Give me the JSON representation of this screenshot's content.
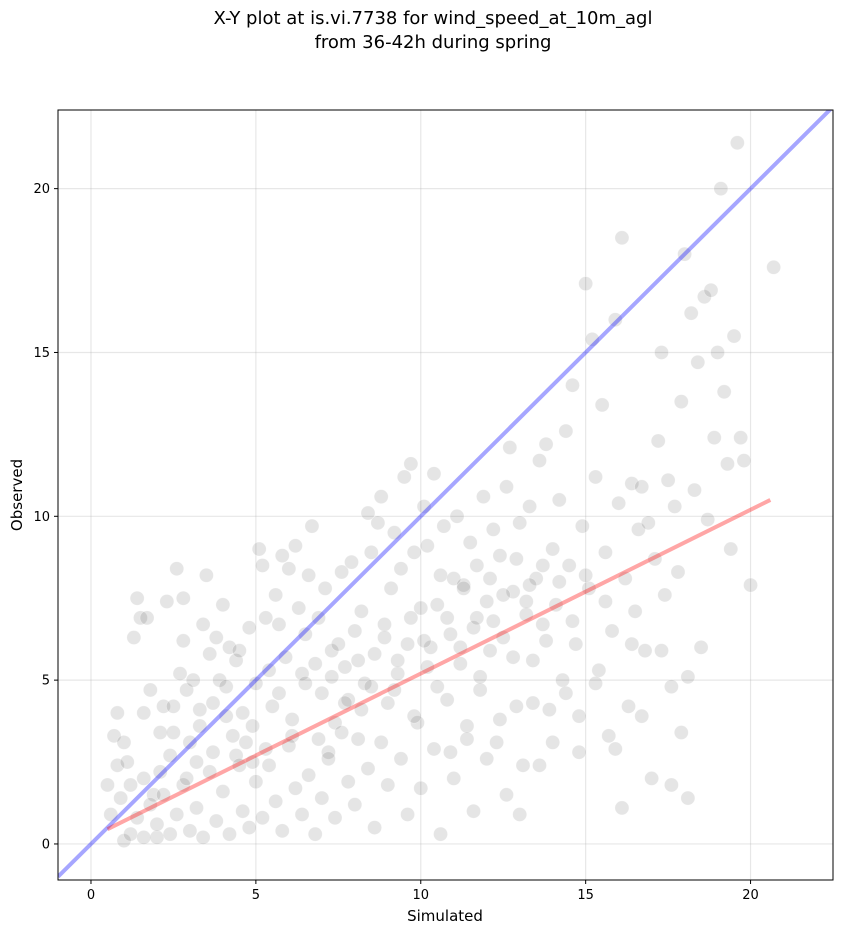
{
  "title_line1": "X-Y plot at is.vi.7738 for wind_speed_at_10m_agl",
  "title_line2": "from 36-42h during spring",
  "chart_data": {
    "type": "scatter",
    "title": "X-Y plot at is.vi.7738 for wind_speed_at_10m_agl\nfrom 36-42h during spring",
    "xlabel": "Simulated",
    "ylabel": "Observed",
    "xlim": [
      -1.0,
      22.5
    ],
    "ylim": [
      -1.1,
      22.4
    ],
    "x_ticks": [
      0,
      5,
      10,
      15,
      20
    ],
    "y_ticks": [
      0,
      5,
      10,
      15,
      20
    ],
    "x_tick_labels": [
      "0",
      "5",
      "10",
      "15",
      "20"
    ],
    "y_tick_labels": [
      "0",
      "5",
      "10",
      "15",
      "20"
    ],
    "grid": true,
    "point_color": "#000000",
    "point_opacity": 0.1,
    "identity_line": {
      "x": [
        -1.0,
        22.5
      ],
      "y": [
        -1.0,
        22.5
      ],
      "color": "#0000ff",
      "opacity": 0.35
    },
    "fit_line": {
      "x": [
        0.5,
        20.6
      ],
      "y": [
        0.45,
        10.5
      ],
      "color": "#ff0000",
      "opacity": 0.35
    },
    "points": [
      [
        0.5,
        1.8
      ],
      [
        0.6,
        0.9
      ],
      [
        0.7,
        3.3
      ],
      [
        0.8,
        4.0
      ],
      [
        0.8,
        2.4
      ],
      [
        0.9,
        1.4
      ],
      [
        1.0,
        3.1
      ],
      [
        1.0,
        0.1
      ],
      [
        1.1,
        2.5
      ],
      [
        1.2,
        1.8
      ],
      [
        1.3,
        6.3
      ],
      [
        1.4,
        7.5
      ],
      [
        1.5,
        6.9
      ],
      [
        1.6,
        4.0
      ],
      [
        1.6,
        2.0
      ],
      [
        1.7,
        6.9
      ],
      [
        1.8,
        4.7
      ],
      [
        1.9,
        1.5
      ],
      [
        2.0,
        0.2
      ],
      [
        2.1,
        3.4
      ],
      [
        2.2,
        4.2
      ],
      [
        2.3,
        7.4
      ],
      [
        2.4,
        2.7
      ],
      [
        2.5,
        4.2
      ],
      [
        2.6,
        8.4
      ],
      [
        2.7,
        5.2
      ],
      [
        2.8,
        6.2
      ],
      [
        2.8,
        7.5
      ],
      [
        2.9,
        4.7
      ],
      [
        3.0,
        3.1
      ],
      [
        3.1,
        5.0
      ],
      [
        3.2,
        2.5
      ],
      [
        3.3,
        4.1
      ],
      [
        3.4,
        6.7
      ],
      [
        3.5,
        8.2
      ],
      [
        3.6,
        5.8
      ],
      [
        3.7,
        4.3
      ],
      [
        3.8,
        6.3
      ],
      [
        3.9,
        5.0
      ],
      [
        4.0,
        7.3
      ],
      [
        4.1,
        4.8
      ],
      [
        4.2,
        6.0
      ],
      [
        4.3,
        3.3
      ],
      [
        4.4,
        5.6
      ],
      [
        4.5,
        5.9
      ],
      [
        4.6,
        4.0
      ],
      [
        4.7,
        3.1
      ],
      [
        4.8,
        6.6
      ],
      [
        4.9,
        2.5
      ],
      [
        5.0,
        4.9
      ],
      [
        5.1,
        9.0
      ],
      [
        5.2,
        8.5
      ],
      [
        5.3,
        6.9
      ],
      [
        5.4,
        5.3
      ],
      [
        5.5,
        4.2
      ],
      [
        5.6,
        7.6
      ],
      [
        5.7,
        6.7
      ],
      [
        5.8,
        8.8
      ],
      [
        5.9,
        5.7
      ],
      [
        6.0,
        8.4
      ],
      [
        6.1,
        3.3
      ],
      [
        6.2,
        9.1
      ],
      [
        6.3,
        7.2
      ],
      [
        6.4,
        5.2
      ],
      [
        6.5,
        6.4
      ],
      [
        6.6,
        8.2
      ],
      [
        6.7,
        9.7
      ],
      [
        6.8,
        5.5
      ],
      [
        6.9,
        6.9
      ],
      [
        7.0,
        4.6
      ],
      [
        7.1,
        7.8
      ],
      [
        7.2,
        2.8
      ],
      [
        7.3,
        5.9
      ],
      [
        7.4,
        3.7
      ],
      [
        7.5,
        6.1
      ],
      [
        7.6,
        8.3
      ],
      [
        7.7,
        5.4
      ],
      [
        7.8,
        4.4
      ],
      [
        7.9,
        8.6
      ],
      [
        8.0,
        6.5
      ],
      [
        8.1,
        3.2
      ],
      [
        8.2,
        7.1
      ],
      [
        8.3,
        4.9
      ],
      [
        8.4,
        10.1
      ],
      [
        8.5,
        8.9
      ],
      [
        8.6,
        5.8
      ],
      [
        8.7,
        9.8
      ],
      [
        8.8,
        10.6
      ],
      [
        8.9,
        6.7
      ],
      [
        9.0,
        4.3
      ],
      [
        9.1,
        7.8
      ],
      [
        9.2,
        9.5
      ],
      [
        9.3,
        5.2
      ],
      [
        9.4,
        8.4
      ],
      [
        9.5,
        11.2
      ],
      [
        9.6,
        6.1
      ],
      [
        9.7,
        11.6
      ],
      [
        9.8,
        8.9
      ],
      [
        9.9,
        3.7
      ],
      [
        10.0,
        7.2
      ],
      [
        10.1,
        10.3
      ],
      [
        10.2,
        9.1
      ],
      [
        10.3,
        6.0
      ],
      [
        10.4,
        11.3
      ],
      [
        10.5,
        4.8
      ],
      [
        10.6,
        8.2
      ],
      [
        10.7,
        9.7
      ],
      [
        10.8,
        6.9
      ],
      [
        10.9,
        2.8
      ],
      [
        11.0,
        8.1
      ],
      [
        11.1,
        10.0
      ],
      [
        11.2,
        5.5
      ],
      [
        11.3,
        7.9
      ],
      [
        11.4,
        3.6
      ],
      [
        11.5,
        9.2
      ],
      [
        11.6,
        6.6
      ],
      [
        11.7,
        8.5
      ],
      [
        11.8,
        4.7
      ],
      [
        11.9,
        10.6
      ],
      [
        12.0,
        7.4
      ],
      [
        12.1,
        5.9
      ],
      [
        12.2,
        9.6
      ],
      [
        12.3,
        3.1
      ],
      [
        12.4,
        8.8
      ],
      [
        12.5,
        6.3
      ],
      [
        12.6,
        10.9
      ],
      [
        12.7,
        12.1
      ],
      [
        12.8,
        7.7
      ],
      [
        12.9,
        4.2
      ],
      [
        13.0,
        9.8
      ],
      [
        13.1,
        2.4
      ],
      [
        13.2,
        7.0
      ],
      [
        13.3,
        10.3
      ],
      [
        13.4,
        5.6
      ],
      [
        13.5,
        8.1
      ],
      [
        13.6,
        11.7
      ],
      [
        13.7,
        6.7
      ],
      [
        13.8,
        12.2
      ],
      [
        13.9,
        4.1
      ],
      [
        14.0,
        9.0
      ],
      [
        14.1,
        7.3
      ],
      [
        14.2,
        10.5
      ],
      [
        14.3,
        5.0
      ],
      [
        14.4,
        12.6
      ],
      [
        14.5,
        8.5
      ],
      [
        14.6,
        14.0
      ],
      [
        14.7,
        6.1
      ],
      [
        14.8,
        2.8
      ],
      [
        14.9,
        9.7
      ],
      [
        15.0,
        17.1
      ],
      [
        15.1,
        7.8
      ],
      [
        15.2,
        15.4
      ],
      [
        15.3,
        11.2
      ],
      [
        15.4,
        5.3
      ],
      [
        15.5,
        13.4
      ],
      [
        15.6,
        8.9
      ],
      [
        15.7,
        3.3
      ],
      [
        15.8,
        6.5
      ],
      [
        15.9,
        16.0
      ],
      [
        16.0,
        10.4
      ],
      [
        16.1,
        18.5
      ],
      [
        16.2,
        8.1
      ],
      [
        16.3,
        4.2
      ],
      [
        16.4,
        11.0
      ],
      [
        16.5,
        7.1
      ],
      [
        16.6,
        9.6
      ],
      [
        16.7,
        10.9
      ],
      [
        16.8,
        5.9
      ],
      [
        16.9,
        9.8
      ],
      [
        17.0,
        2.0
      ],
      [
        17.1,
        8.7
      ],
      [
        17.2,
        12.3
      ],
      [
        17.3,
        15.0
      ],
      [
        17.4,
        7.6
      ],
      [
        17.5,
        11.1
      ],
      [
        17.6,
        4.8
      ],
      [
        17.7,
        10.3
      ],
      [
        17.8,
        8.3
      ],
      [
        17.9,
        13.5
      ],
      [
        18.0,
        18.0
      ],
      [
        18.1,
        1.4
      ],
      [
        18.2,
        16.2
      ],
      [
        18.3,
        10.8
      ],
      [
        18.4,
        14.7
      ],
      [
        18.5,
        6.0
      ],
      [
        18.6,
        16.7
      ],
      [
        18.7,
        9.9
      ],
      [
        18.8,
        16.9
      ],
      [
        18.9,
        12.4
      ],
      [
        19.0,
        15.0
      ],
      [
        19.1,
        20.0
      ],
      [
        19.2,
        13.8
      ],
      [
        19.3,
        11.6
      ],
      [
        19.4,
        9.0
      ],
      [
        19.5,
        15.5
      ],
      [
        19.6,
        21.4
      ],
      [
        19.7,
        12.4
      ],
      [
        19.8,
        11.7
      ],
      [
        20.0,
        7.9
      ],
      [
        20.7,
        17.6
      ],
      [
        1.2,
        0.3
      ],
      [
        1.4,
        0.8
      ],
      [
        1.6,
        0.2
      ],
      [
        1.8,
        1.2
      ],
      [
        2.0,
        0.6
      ],
      [
        2.2,
        1.5
      ],
      [
        2.4,
        0.3
      ],
      [
        2.6,
        0.9
      ],
      [
        2.8,
        1.8
      ],
      [
        3.0,
        0.4
      ],
      [
        3.2,
        1.1
      ],
      [
        3.4,
        0.2
      ],
      [
        3.6,
        2.2
      ],
      [
        3.8,
        0.7
      ],
      [
        4.0,
        1.6
      ],
      [
        4.2,
        0.3
      ],
      [
        4.4,
        2.7
      ],
      [
        4.6,
        1.0
      ],
      [
        4.8,
        0.5
      ],
      [
        5.0,
        1.9
      ],
      [
        5.2,
        0.8
      ],
      [
        5.4,
        2.4
      ],
      [
        5.6,
        1.3
      ],
      [
        5.8,
        0.4
      ],
      [
        6.0,
        3.0
      ],
      [
        6.2,
        1.7
      ],
      [
        6.4,
        0.9
      ],
      [
        6.6,
        2.1
      ],
      [
        6.8,
        0.3
      ],
      [
        7.0,
        1.4
      ],
      [
        7.2,
        2.6
      ],
      [
        7.4,
        0.8
      ],
      [
        7.6,
        3.4
      ],
      [
        7.8,
        1.9
      ],
      [
        8.0,
        1.2
      ],
      [
        8.2,
        4.1
      ],
      [
        8.4,
        2.3
      ],
      [
        8.6,
        0.5
      ],
      [
        8.8,
        3.1
      ],
      [
        9.0,
        1.8
      ],
      [
        9.2,
        4.7
      ],
      [
        9.4,
        2.6
      ],
      [
        9.6,
        0.9
      ],
      [
        9.8,
        3.9
      ],
      [
        10.0,
        1.7
      ],
      [
        10.2,
        5.4
      ],
      [
        10.4,
        2.9
      ],
      [
        10.6,
        0.3
      ],
      [
        10.8,
        4.4
      ],
      [
        11.0,
        2.0
      ],
      [
        11.2,
        6.0
      ],
      [
        11.4,
        3.2
      ],
      [
        11.6,
        1.0
      ],
      [
        11.8,
        5.1
      ],
      [
        12.0,
        2.6
      ],
      [
        12.2,
        6.8
      ],
      [
        12.4,
        3.8
      ],
      [
        12.6,
        1.5
      ],
      [
        12.8,
        5.7
      ],
      [
        13.0,
        0.9
      ],
      [
        13.2,
        7.4
      ],
      [
        13.4,
        4.3
      ],
      [
        13.6,
        2.4
      ],
      [
        13.8,
        6.2
      ],
      [
        14.0,
        3.1
      ],
      [
        14.2,
        8.0
      ],
      [
        14.4,
        4.6
      ],
      [
        14.6,
        6.8
      ],
      [
        14.8,
        3.9
      ],
      [
        15.0,
        8.2
      ],
      [
        15.3,
        4.9
      ],
      [
        15.6,
        7.4
      ],
      [
        15.9,
        2.9
      ],
      [
        16.1,
        1.1
      ],
      [
        16.4,
        6.1
      ],
      [
        16.7,
        3.9
      ],
      [
        17.3,
        5.9
      ],
      [
        17.6,
        1.8
      ],
      [
        17.9,
        3.4
      ],
      [
        18.1,
        5.1
      ],
      [
        2.1,
        2.2
      ],
      [
        2.5,
        3.4
      ],
      [
        2.9,
        2.0
      ],
      [
        3.3,
        3.6
      ],
      [
        3.7,
        2.8
      ],
      [
        4.1,
        3.9
      ],
      [
        4.5,
        2.4
      ],
      [
        4.9,
        3.6
      ],
      [
        5.3,
        2.9
      ],
      [
        5.7,
        4.6
      ],
      [
        6.1,
        3.8
      ],
      [
        6.5,
        4.9
      ],
      [
        6.9,
        3.2
      ],
      [
        7.3,
        5.1
      ],
      [
        7.7,
        4.3
      ],
      [
        8.1,
        5.6
      ],
      [
        8.5,
        4.8
      ],
      [
        8.9,
        6.3
      ],
      [
        9.3,
        5.6
      ],
      [
        9.7,
        6.9
      ],
      [
        10.1,
        6.2
      ],
      [
        10.5,
        7.3
      ],
      [
        10.9,
        6.4
      ],
      [
        11.3,
        7.8
      ],
      [
        11.7,
        6.9
      ],
      [
        12.1,
        8.1
      ],
      [
        12.5,
        7.6
      ],
      [
        12.9,
        8.7
      ],
      [
        13.3,
        7.9
      ],
      [
        13.7,
        8.5
      ]
    ]
  }
}
